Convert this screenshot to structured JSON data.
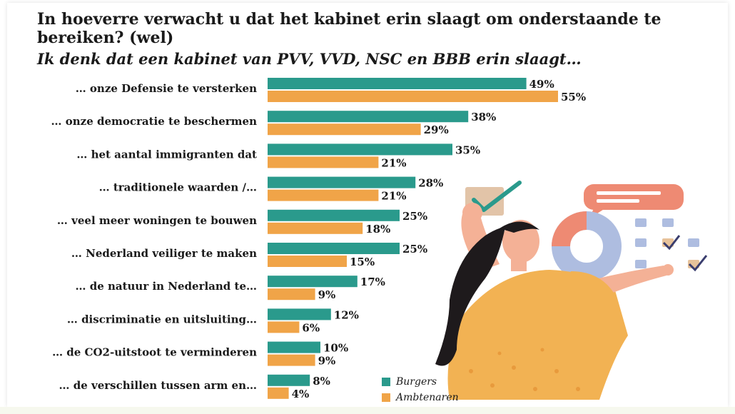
{
  "header": {
    "title": "In hoeverre verwacht u dat het kabinet erin slaagt om onderstaande te bereiken? (wel)",
    "subtitle": "Ik denk dat een kabinet van PVV, VVD, NSC en BBB erin slaagt…"
  },
  "chart_data": {
    "type": "bar",
    "orientation": "horizontal",
    "categories": [
      "… onze Defensie te versterken",
      "… onze democratie te beschermen",
      "… het aantal immigranten dat",
      "… traditionele waarden /…",
      "… veel meer woningen te bouwen",
      "… Nederland veiliger te maken",
      "… de natuur in Nederland te…",
      "… discriminatie en uitsluiting…",
      "… de CO2-uitstoot te verminderen",
      "… de verschillen tussen arm en…"
    ],
    "series": [
      {
        "name": "Burgers",
        "color": "#2a9a8c",
        "values": [
          49,
          38,
          35,
          28,
          25,
          25,
          17,
          12,
          10,
          8
        ]
      },
      {
        "name": "Ambtenaren",
        "color": "#f0a448",
        "values": [
          55,
          29,
          21,
          21,
          18,
          15,
          9,
          6,
          9,
          4
        ]
      }
    ],
    "value_suffix": "%",
    "xlim": [
      0,
      100
    ],
    "grid": false,
    "legend_position": "bottom-right"
  }
}
